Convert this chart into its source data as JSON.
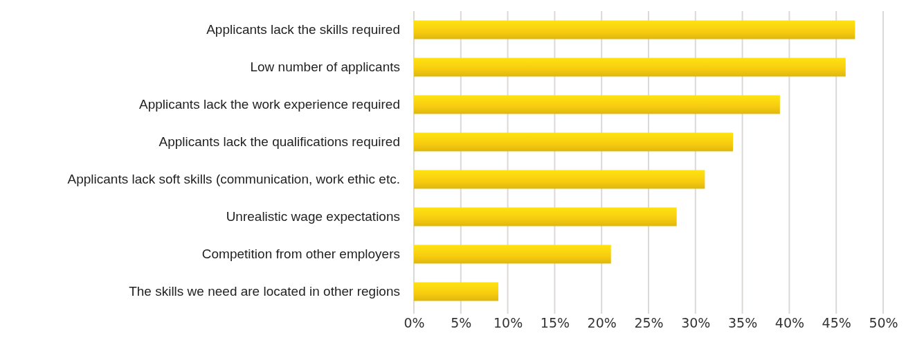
{
  "chart_data": {
    "type": "bar",
    "orientation": "horizontal",
    "categories": [
      "Applicants lack the skills required",
      "Low number of applicants",
      "Applicants lack the work experience required",
      "Applicants lack the qualifications required",
      "Applicants lack soft skills (communication, work ethic etc.",
      "Unrealistic wage expectations",
      "Competition from other employers",
      "The skills we need are located in other regions"
    ],
    "values": [
      47,
      46,
      39,
      34,
      31,
      28,
      21,
      9
    ],
    "color": "#f7cc0f",
    "xlim": [
      0,
      50
    ],
    "xticks": [
      {
        "value": 0,
        "label": "0%"
      },
      {
        "value": 5,
        "label": "5%"
      },
      {
        "value": 10,
        "label": "10%"
      },
      {
        "value": 15,
        "label": "15%"
      },
      {
        "value": 20,
        "label": "20%"
      },
      {
        "value": 25,
        "label": "25%"
      },
      {
        "value": 30,
        "label": "30%"
      },
      {
        "value": 35,
        "label": "35%"
      },
      {
        "value": 40,
        "label": "40%"
      },
      {
        "value": 45,
        "label": "45%"
      },
      {
        "value": 50,
        "label": "50%"
      }
    ],
    "grid": "x"
  }
}
